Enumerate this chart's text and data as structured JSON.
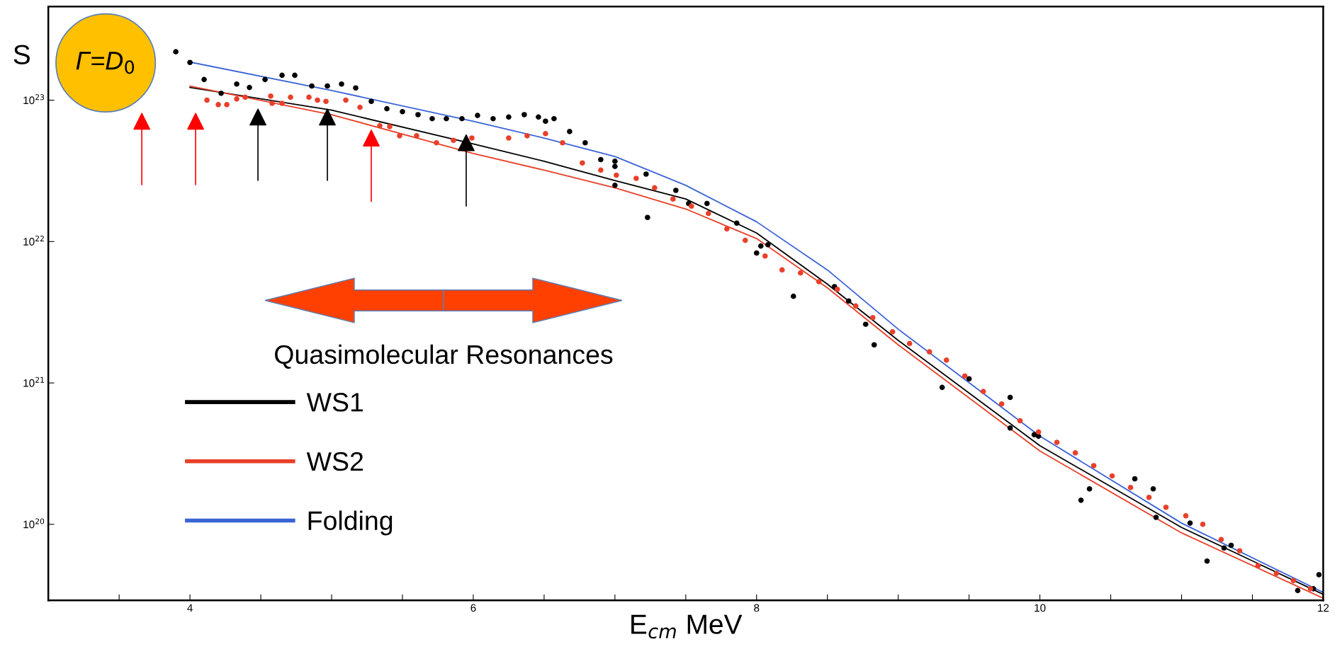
{
  "chart_data": {
    "type": "scatter",
    "xlabel": "E$_{cm}$ MeV",
    "ylabel": "S",
    "log": "y",
    "grid": false,
    "legend": "left",
    "annotations": [
      "Γ=D$_{0}$",
      "Quasimolecular Resonances"
    ],
    "xlim": [
      3,
      12
    ],
    "ylim": [
      2.9e+19,
      4.6e+23
    ],
    "xticks": [
      {
        "value": 3.5,
        "label": null
      },
      4,
      {
        "value": 4.5,
        "label": null
      },
      {
        "value": 5,
        "label": null
      },
      {
        "value": 5.5,
        "label": null
      },
      6,
      {
        "value": 6.5,
        "label": null
      },
      {
        "value": 7,
        "label": null
      },
      {
        "value": 7.5,
        "label": null
      },
      8,
      {
        "value": 8.5,
        "label": null
      },
      {
        "value": 9,
        "label": null
      },
      {
        "value": 9.5,
        "label": null
      },
      10,
      {
        "value": 10.5,
        "label": null
      },
      {
        "value": 11,
        "label": null
      },
      {
        "value": 11.5,
        "label": null
      },
      12
    ],
    "yticks": [
      {
        "value": 1e+20,
        "label": "10$^{20}$"
      },
      {
        "value": 1e+21,
        "label": "10$^{21}$"
      },
      {
        "value": 1e+22,
        "label": "10$^{22}$"
      },
      {
        "value": 1e+23,
        "label": "10$^{23}$"
      }
    ],
    "series": [
      {
        "type": "line",
        "name": "WS1",
        "color": "#000000",
        "x": [
          4.0,
          5.0,
          6.0,
          6.5,
          7.0,
          7.5,
          8.0,
          8.5,
          9.0,
          10.0,
          11.0,
          12.0
        ],
        "values": [
          1.23e+23,
          8.5e+22,
          4.9e+22,
          3.7e+22,
          2.7e+22,
          2e+22,
          1.15e+22,
          5e+21,
          2e+21,
          3.6e+20,
          9.5e+19,
          3.2e+19
        ]
      },
      {
        "type": "line",
        "name": "WS2",
        "color": "#e8402a",
        "x": [
          4.0,
          5.0,
          6.0,
          6.5,
          7.0,
          7.5,
          8.0,
          8.5,
          9.0,
          10.0,
          11.0,
          12.0
        ],
        "values": [
          1.26e+23,
          7.9e+22,
          4.2e+22,
          3.2e+22,
          2.4e+22,
          1.7e+22,
          1.05e+22,
          4.7e+21,
          1.86e+21,
          3.3e+20,
          8.7e+19,
          3e+19
        ]
      },
      {
        "type": "line",
        "name": "Folding",
        "color": "#3a63d6",
        "x": [
          4.0,
          5.0,
          6.0,
          6.5,
          7.0,
          7.5,
          8.0,
          8.5,
          9.0,
          10.0,
          11.0,
          12.0
        ],
        "values": [
          1.86e+23,
          1.17e+23,
          7.1e+22,
          5.4e+22,
          4e+22,
          2.5e+22,
          1.38e+22,
          6.3e+21,
          2.4e+21,
          4.2e+20,
          1.02e+20,
          3.3e+19
        ]
      },
      {
        "marker": "circle",
        "color": "#000000",
        "x": [
          3.9,
          4.0,
          4.1,
          4.22,
          4.33,
          4.42,
          4.53,
          4.65,
          4.74,
          4.86,
          4.97,
          5.07,
          5.17,
          5.28,
          5.39,
          5.5,
          5.61,
          5.71,
          5.81,
          5.92,
          6.03,
          6.14,
          6.25,
          6.36,
          6.46,
          6.51,
          6.57,
          6.68,
          6.79,
          6.9,
          7.0,
          7.0,
          7.0,
          7.22,
          7.23,
          7.43,
          7.52,
          7.65,
          7.86,
          8.0,
          8.03,
          8.08,
          8.26,
          8.55,
          8.65,
          8.77,
          8.83,
          9.31,
          9.5,
          9.79,
          9.79,
          9.96,
          9.99,
          10.29,
          10.35,
          10.67,
          10.8,
          10.82,
          11.06,
          11.18,
          11.3,
          11.35,
          11.82,
          11.93,
          11.97
        ],
        "values": [
          2.2e+23,
          1.85e+23,
          1.4e+23,
          1.12e+23,
          1.3e+23,
          1.23e+23,
          1.4e+23,
          1.5e+23,
          1.5e+23,
          1.26e+23,
          1.26e+23,
          1.3e+23,
          1.22e+23,
          9.8e+22,
          8.7e+22,
          8.3e+22,
          7.9e+22,
          7.4e+22,
          7.4e+22,
          7.4e+22,
          7.8e+22,
          7.4e+22,
          7.6e+22,
          7.9e+22,
          7.6e+22,
          7.1e+22,
          7.4e+22,
          6e+22,
          5e+22,
          3.8e+22,
          3.7e+22,
          3.4e+22,
          2.5e+22,
          3e+22,
          1.48e+22,
          2.3e+22,
          1.86e+22,
          1.86e+22,
          1.35e+22,
          8.3e+21,
          9.3e+21,
          9.5e+21,
          4.1e+21,
          4.8e+21,
          3.8e+21,
          2.6e+21,
          1.86e+21,
          9.3e+20,
          1.07e+21,
          7.9e+20,
          4.8e+20,
          4.3e+20,
          4.2e+20,
          1.48e+20,
          1.78e+20,
          2.1e+20,
          1.78e+20,
          1.12e+20,
          1.02e+20,
          5.5e+19,
          6.8e+19,
          7.1e+19,
          3.4e+19,
          3.5e+19,
          4.4e+19
        ]
      },
      {
        "marker": "circle",
        "color": "#e8402a",
        "x": [
          4.12,
          4.2,
          4.26,
          4.33,
          4.39,
          4.57,
          4.58,
          4.65,
          4.71,
          4.84,
          4.9,
          4.96,
          5.1,
          5.2,
          5.34,
          5.41,
          5.48,
          5.6,
          5.74,
          5.86,
          5.99,
          6.25,
          6.38,
          6.51,
          6.63,
          6.77,
          6.9,
          7.01,
          7.15,
          7.28,
          7.41,
          7.54,
          7.66,
          7.79,
          7.92,
          8.06,
          8.18,
          8.31,
          8.44,
          8.57,
          8.7,
          8.82,
          8.96,
          9.08,
          9.22,
          9.34,
          9.47,
          9.6,
          9.73,
          9.86,
          9.99,
          10.12,
          10.25,
          10.38,
          10.51,
          10.64,
          10.77,
          10.89,
          11.03,
          11.15,
          11.28,
          11.41,
          11.54,
          11.67,
          11.79,
          11.91
        ],
        "values": [
          1e+23,
          9.3e+22,
          9.3e+22,
          1.02e+23,
          1.05e+23,
          1.07e+23,
          9.5e+22,
          9.5e+22,
          1.05e+23,
          1.05e+23,
          1e+23,
          9.8e+22,
          1e+23,
          8.9e+22,
          6.6e+22,
          6.5e+22,
          5.6e+22,
          5.6e+22,
          5e+22,
          5.2e+22,
          5.4e+22,
          5.4e+22,
          5.6e+22,
          5.8e+22,
          5e+22,
          3.6e+22,
          3.2e+22,
          2.95e+22,
          2.8e+22,
          2.4e+22,
          2e+22,
          1.78e+22,
          1.58e+22,
          1.23e+22,
          1.02e+22,
          7.9e+21,
          6.3e+21,
          6e+21,
          5.2e+21,
          4.6e+21,
          3.5e+21,
          2.9e+21,
          2.3e+21,
          1.9e+21,
          1.66e+21,
          1.45e+21,
          1.12e+21,
          8.7e+20,
          7.1e+20,
          5.4e+20,
          4.5e+20,
          3.8e+20,
          3.2e+20,
          2.6e+20,
          2.2e+20,
          1.82e+20,
          1.55e+20,
          1.32e+20,
          1.15e+20,
          1e+20,
          7.8e+19,
          6.5e+19,
          5.1e+19,
          4.5e+19,
          4e+19,
          3.5e+19
        ]
      },
      {
        "marker": "triangle",
        "color": "#ff0000",
        "x": [
          3.66,
          4.04,
          5.28
        ],
        "values": [
          7.1e+22,
          7.1e+22,
          5.4e+22
        ]
      },
      {
        "marker": "triangle",
        "color": "#000000",
        "x": [
          4.48,
          4.97,
          5.95
        ],
        "values": [
          7.6e+22,
          7.6e+22,
          5e+22
        ]
      }
    ]
  }
}
